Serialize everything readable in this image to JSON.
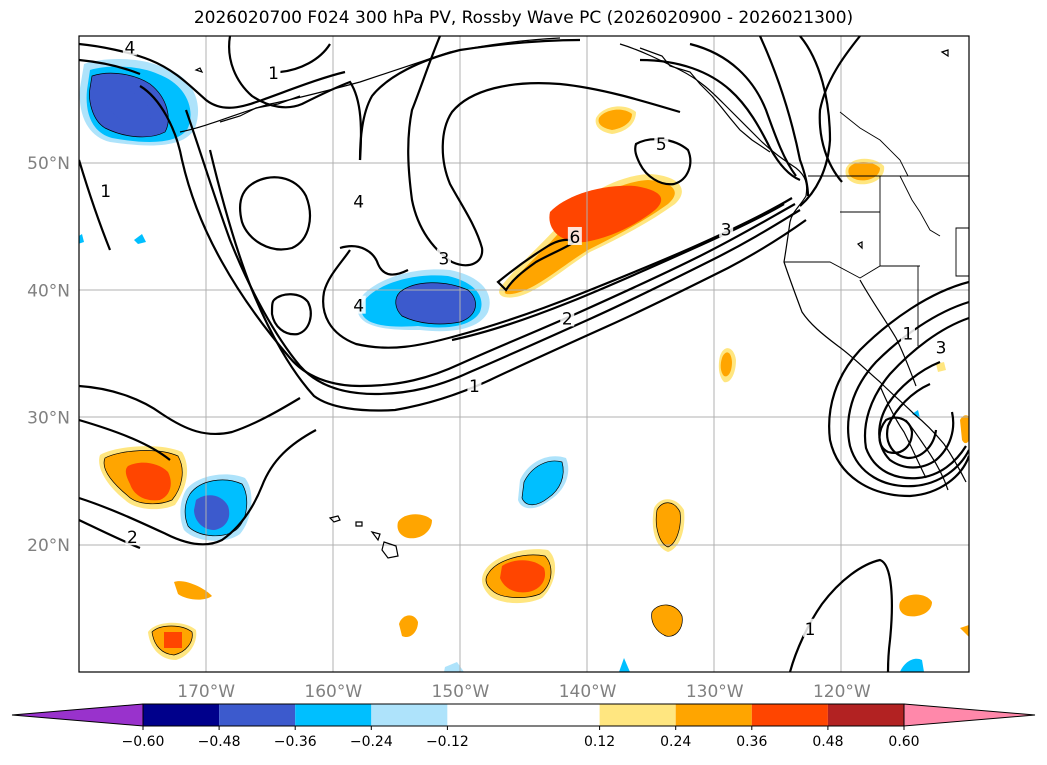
{
  "title": "2026020700 F024 300 hPa PV, Rossby Wave PC (2026020900 - 2026021300)",
  "map": {
    "projection": "PlateCarree",
    "lon_range": [
      -180,
      -110
    ],
    "lat_range": [
      10,
      60
    ],
    "lat_ticks": [
      {
        "value": 20,
        "label": "20°N"
      },
      {
        "value": 30,
        "label": "30°N"
      },
      {
        "value": 40,
        "label": "40°N"
      },
      {
        "value": 50,
        "label": "50°N"
      }
    ],
    "lon_ticks": [
      {
        "value": -170,
        "label": "170°W"
      },
      {
        "value": -160,
        "label": "160°W"
      },
      {
        "value": -150,
        "label": "150°W"
      },
      {
        "value": -140,
        "label": "140°W"
      },
      {
        "value": -130,
        "label": "130°W"
      },
      {
        "value": -120,
        "label": "120°W"
      }
    ],
    "gridlines": true
  },
  "colorbar": {
    "extend": "both",
    "levels": [
      -0.72,
      -0.6,
      -0.48,
      -0.36,
      -0.24,
      -0.12,
      0.12,
      0.24,
      0.36,
      0.48,
      0.6,
      0.72
    ],
    "colors": [
      "#9932cc",
      "#00008b",
      "#3c5acd",
      "#00bfff",
      "#aee3fb",
      "#ffffff",
      "#ffe680",
      "#ffa500",
      "#ff4500",
      "#b22222",
      "#ff88aa"
    ],
    "tick_labels": [
      {
        "value": -0.6,
        "label": "−0.60"
      },
      {
        "value": -0.48,
        "label": "−0.48"
      },
      {
        "value": -0.36,
        "label": "−0.36"
      },
      {
        "value": -0.24,
        "label": "−0.24"
      },
      {
        "value": -0.12,
        "label": "−0.12"
      },
      {
        "value": 0.12,
        "label": "0.12"
      },
      {
        "value": 0.24,
        "label": "0.24"
      },
      {
        "value": 0.36,
        "label": "0.36"
      },
      {
        "value": 0.48,
        "label": "0.48"
      },
      {
        "value": 0.6,
        "label": "0.60"
      }
    ]
  },
  "pv_contour_labels": [
    {
      "text": "4",
      "lon": -176.0,
      "lat": 59.1
    },
    {
      "text": "1",
      "lon": -164.7,
      "lat": 57.1
    },
    {
      "text": "1",
      "lon": -177.9,
      "lat": 47.8
    },
    {
      "text": "4",
      "lon": -158.0,
      "lat": 47.0
    },
    {
      "text": "3",
      "lon": -151.3,
      "lat": 42.5
    },
    {
      "text": "4",
      "lon": -158.0,
      "lat": 38.8
    },
    {
      "text": "6",
      "lon": -141.0,
      "lat": 44.2
    },
    {
      "text": "5",
      "lon": -134.2,
      "lat": 51.5
    },
    {
      "text": "3",
      "lon": -129.1,
      "lat": 44.8
    },
    {
      "text": "2",
      "lon": -141.6,
      "lat": 37.8
    },
    {
      "text": "1",
      "lon": -148.9,
      "lat": 32.5
    },
    {
      "text": "2",
      "lon": -175.8,
      "lat": 20.6
    },
    {
      "text": "1",
      "lon": -114.8,
      "lat": 36.6
    },
    {
      "text": "3",
      "lon": -112.2,
      "lat": 35.5
    },
    {
      "text": "1",
      "lon": -122.5,
      "lat": 13.4
    }
  ],
  "rossby_wave_pc_anomalies": [
    {
      "sign": "negative",
      "peak": -0.48,
      "lon": -172.0,
      "lat": 54.8
    },
    {
      "sign": "negative",
      "peak": -0.48,
      "lon": -147.9,
      "lat": 38.9
    },
    {
      "sign": "negative",
      "peak": -0.36,
      "lon": -168.9,
      "lat": 22.7
    },
    {
      "sign": "negative",
      "peak": -0.24,
      "lon": -141.8,
      "lat": 24.7
    },
    {
      "sign": "positive",
      "peak": 0.36,
      "lon": -139.3,
      "lat": 45.6
    },
    {
      "sign": "positive",
      "peak": 0.24,
      "lon": -143.5,
      "lat": 41.1
    },
    {
      "sign": "positive",
      "peak": 0.36,
      "lon": -174.5,
      "lat": 25.5
    },
    {
      "sign": "positive",
      "peak": 0.36,
      "lon": -144.2,
      "lat": 17.8
    },
    {
      "sign": "positive",
      "peak": 0.36,
      "lon": -172.7,
      "lat": 12.6
    },
    {
      "sign": "positive",
      "peak": 0.24,
      "lon": -134.0,
      "lat": 21.5
    },
    {
      "sign": "positive",
      "peak": 0.24,
      "lon": -121.8,
      "lat": 49.5
    }
  ]
}
